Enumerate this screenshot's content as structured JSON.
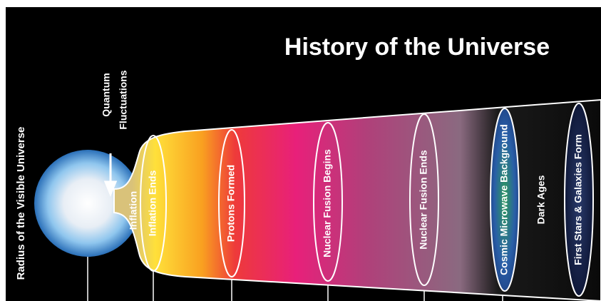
{
  "title": "History of the Universe",
  "radius_label": "Radius of the Visible Universe",
  "quantum_label": [
    "Quantum",
    "Fluctuations"
  ],
  "stages": [
    "Inflation",
    "Inflation Ends",
    "Protons Formed",
    "Nuclear Fusion Begins",
    "Nuclear Fusion Ends",
    "Cosmic Microwave Background",
    "Dark Ages",
    "First Stars & Galaxies Form"
  ]
}
